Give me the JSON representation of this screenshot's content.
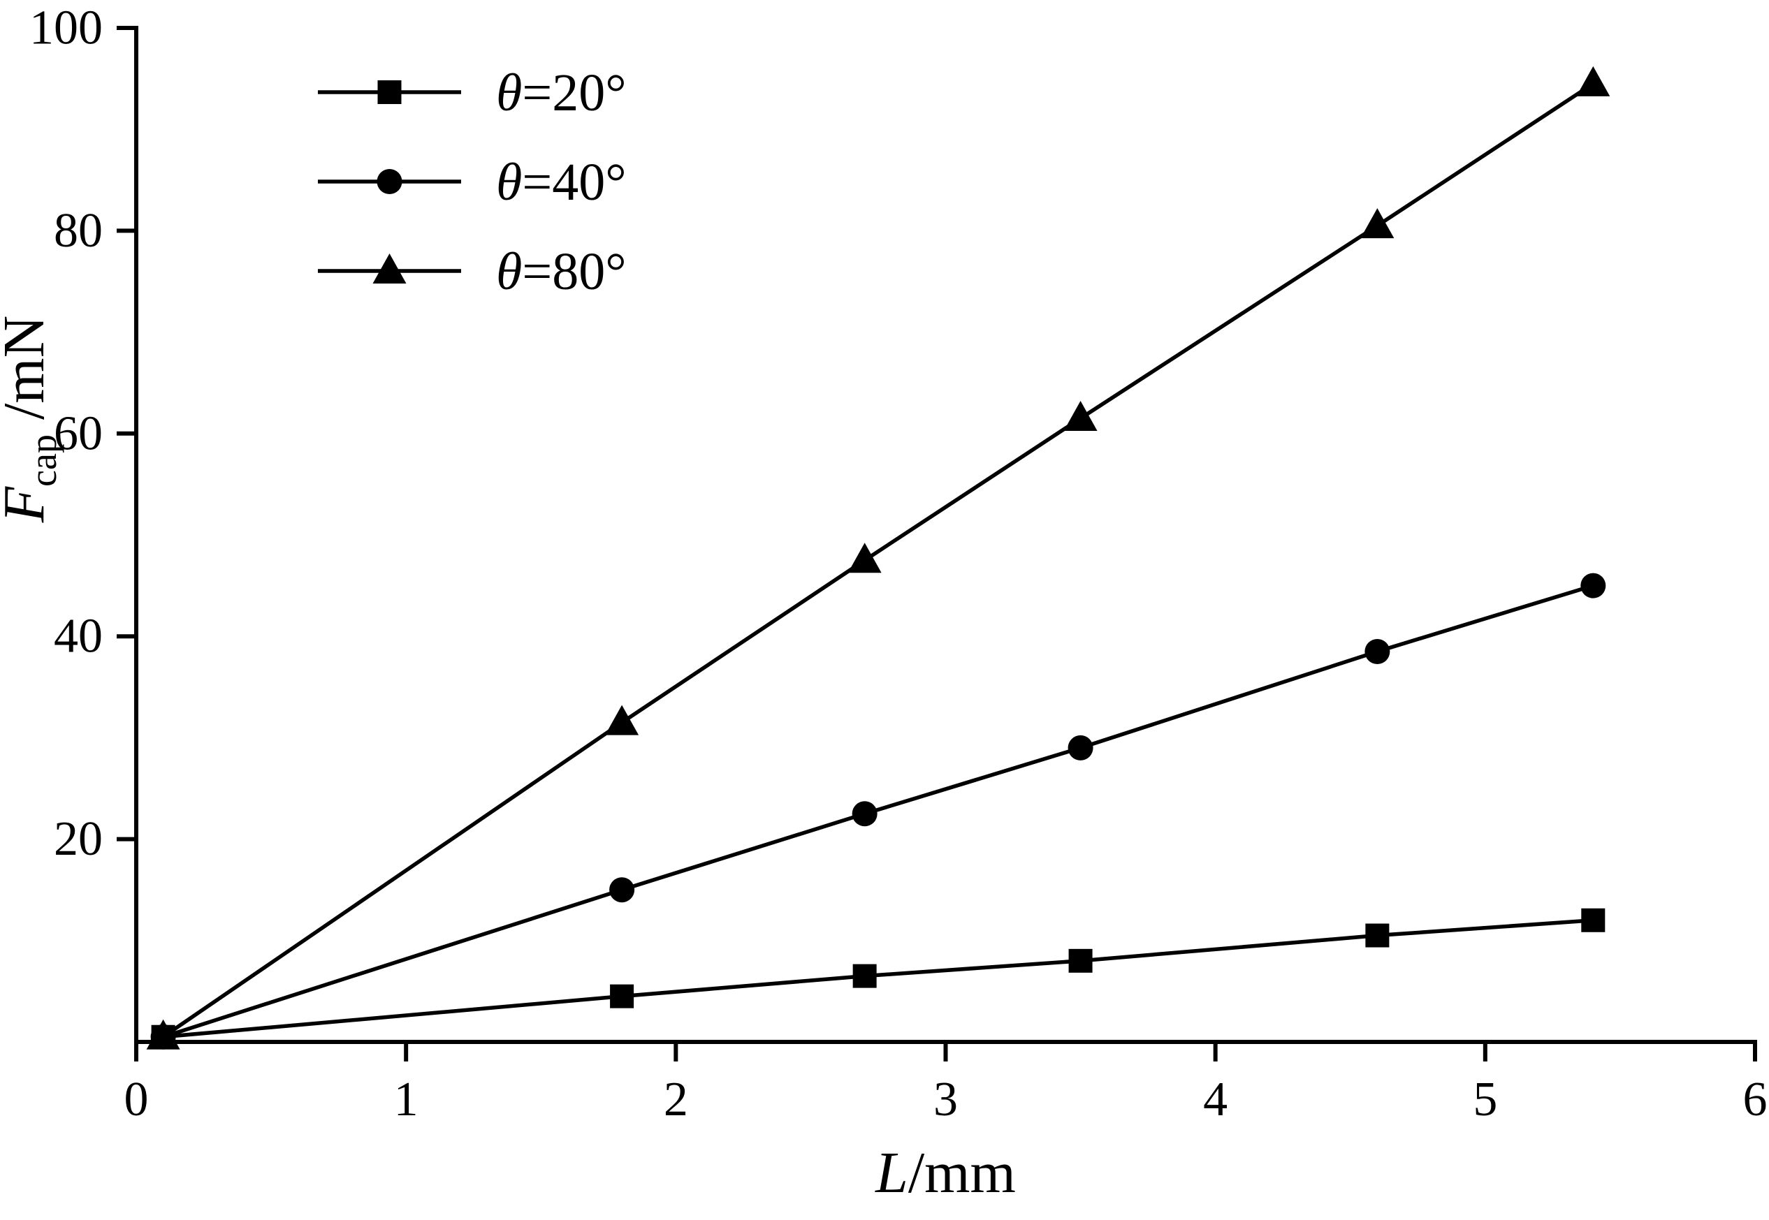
{
  "figure": {
    "background": "#ffffff"
  },
  "chart_data": {
    "type": "line",
    "title": "",
    "xlabel": {
      "italic": "L",
      "rest": "/mm"
    },
    "ylabel": {
      "italic": "F",
      "sub": "cap",
      "rest": " /mN"
    },
    "xlim": [
      0,
      6
    ],
    "ylim": [
      0,
      100
    ],
    "xticks": [
      0,
      1,
      2,
      3,
      4,
      5,
      6
    ],
    "yticks": [
      20,
      40,
      60,
      80,
      100
    ],
    "grid": false,
    "legend_position": "top-left",
    "line_color": "#000000",
    "x": [
      0.1,
      1.8,
      2.7,
      3.5,
      4.6,
      5.4
    ],
    "series": [
      {
        "name": "θ=20°",
        "marker": "square",
        "values": [
          0.5,
          4.5,
          6.5,
          8.0,
          10.5,
          12.0
        ]
      },
      {
        "name": "θ=40°",
        "marker": "circle",
        "values": [
          0.5,
          15.0,
          22.5,
          29.0,
          38.5,
          45.0
        ]
      },
      {
        "name": "θ=80°",
        "marker": "triangle",
        "values": [
          0.5,
          31.5,
          47.5,
          61.5,
          80.5,
          94.5
        ]
      }
    ]
  }
}
